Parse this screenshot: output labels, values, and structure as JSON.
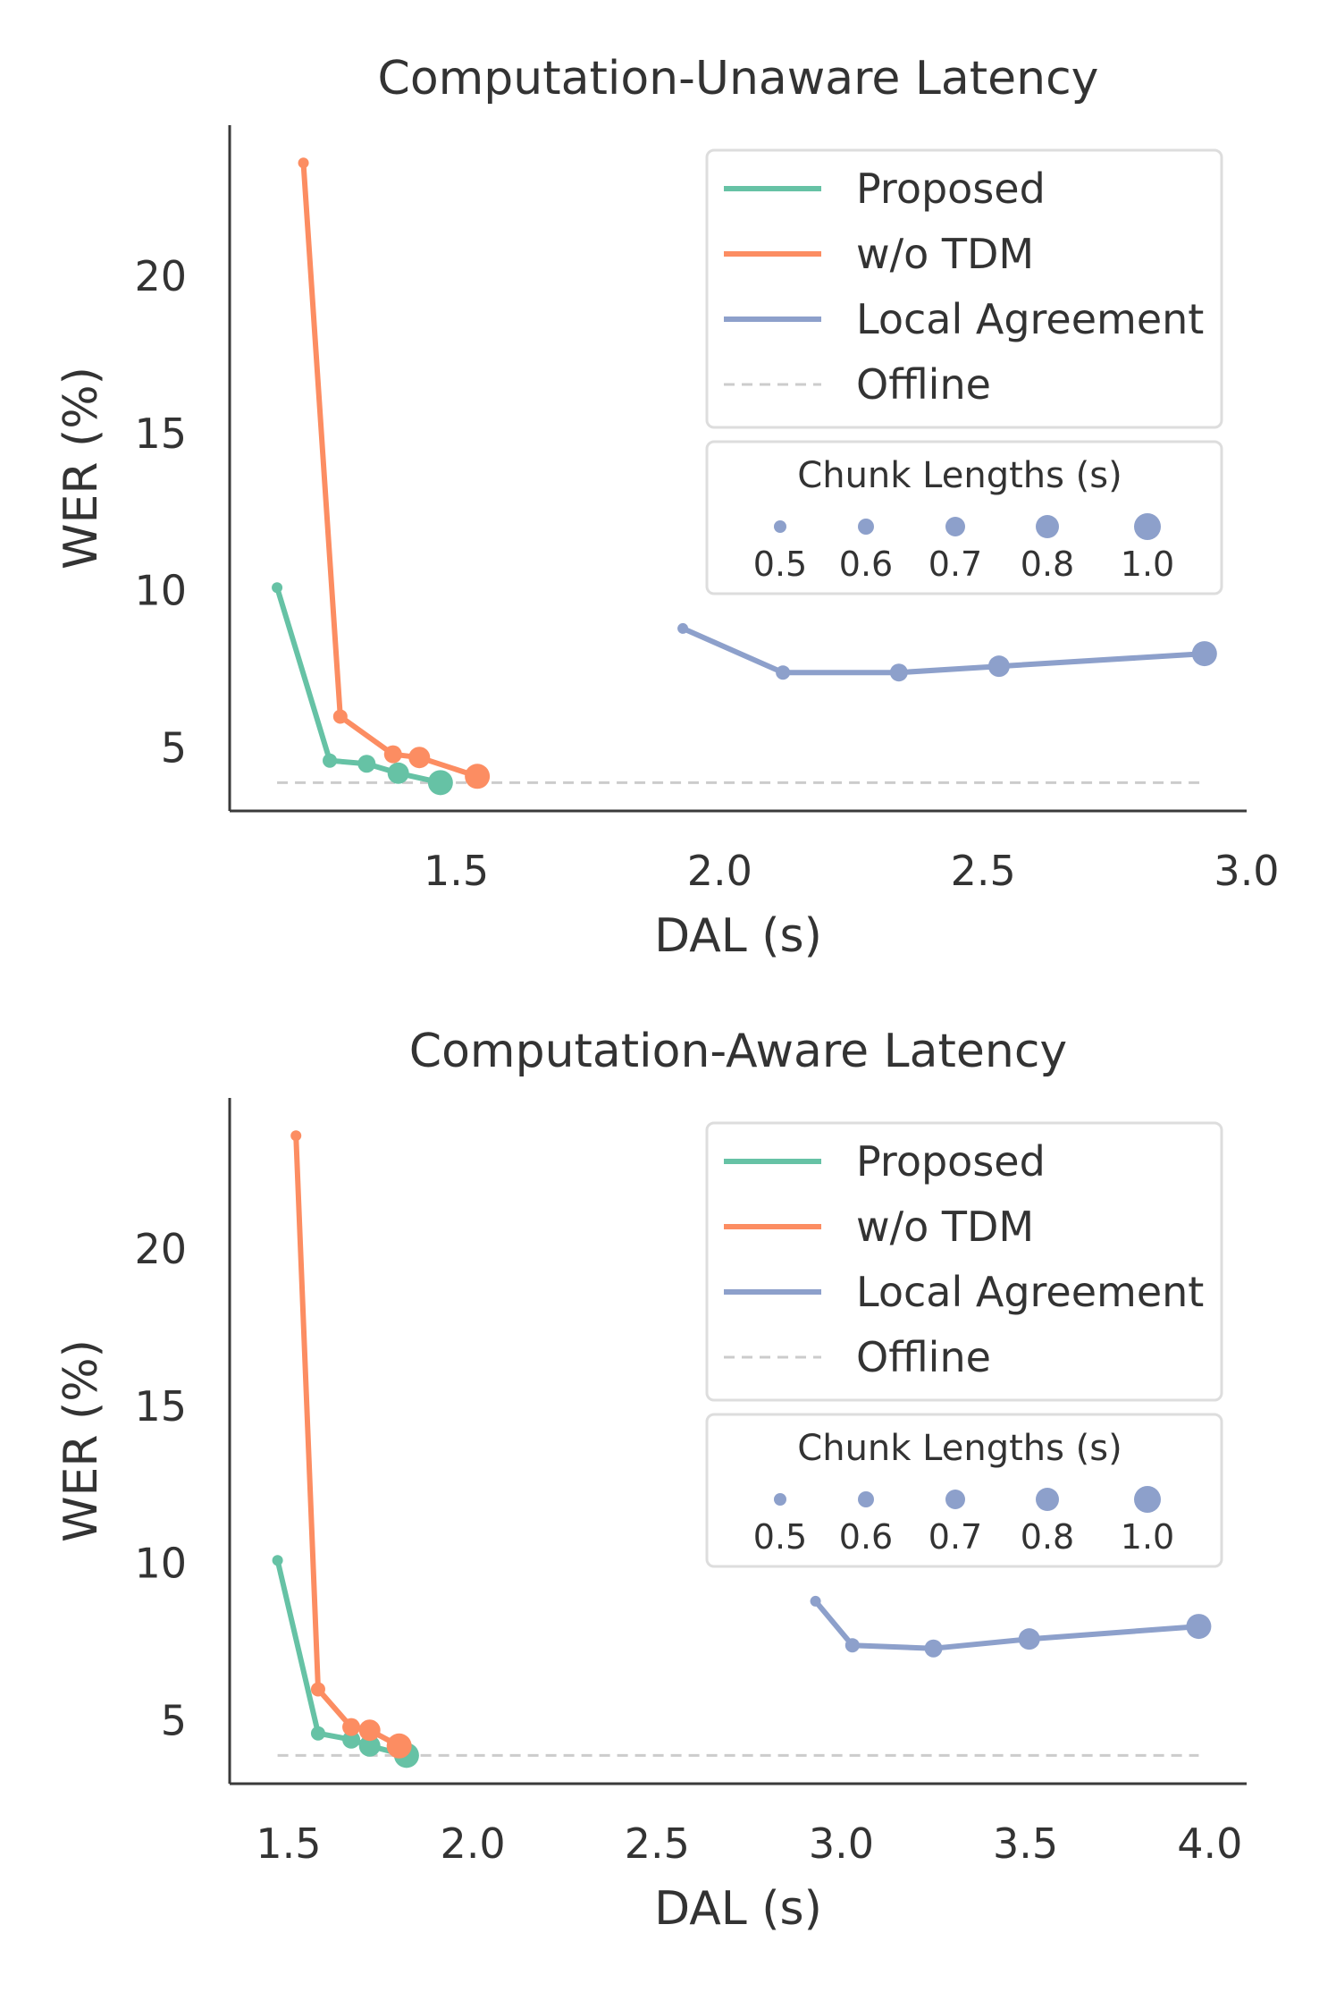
{
  "colors": {
    "proposed": "#66c2a5",
    "wo_tdm": "#fc8d62",
    "local_agreement": "#8da0cb",
    "offline": "#cccccc",
    "axis": "#3a3a3a",
    "legend_border": "#dddddd"
  },
  "chunk_legend": {
    "title": "Chunk Lengths (s)",
    "labels": [
      "0.5",
      "0.6",
      "0.7",
      "0.8",
      "1.0"
    ]
  },
  "chart_data": [
    {
      "type": "line",
      "title": "Computation-Unaware Latency",
      "xlabel": "DAL (s)",
      "ylabel": "WER (%)",
      "xlim": [
        1.07,
        3.0
      ],
      "ylim": [
        3.0,
        24.8
      ],
      "xticks": [
        "1.5",
        "2.0",
        "2.5",
        "3.0"
      ],
      "xtick_values": [
        1.5,
        2.0,
        2.5,
        3.0
      ],
      "yticks": [
        "5",
        "10",
        "15",
        "20"
      ],
      "ytick_values": [
        5,
        10,
        15,
        20
      ],
      "grid": false,
      "legend_position": "top-right",
      "chunk_lengths": [
        0.5,
        0.6,
        0.7,
        0.8,
        1.0
      ],
      "offline": {
        "name": "Offline",
        "y": 3.9,
        "x_range": [
          1.16,
          2.92
        ]
      },
      "series": [
        {
          "name": "Proposed",
          "color_key": "proposed",
          "x": [
            1.16,
            1.26,
            1.33,
            1.39,
            1.47
          ],
          "y": [
            10.1,
            4.6,
            4.5,
            4.2,
            3.9
          ]
        },
        {
          "name": "w/o TDM",
          "color_key": "wo_tdm",
          "x": [
            1.21,
            1.28,
            1.38,
            1.43,
            1.54
          ],
          "y": [
            23.6,
            6.0,
            4.8,
            4.7,
            4.1
          ]
        },
        {
          "name": "Local Agreement",
          "color_key": "local_agreement",
          "x": [
            1.93,
            2.12,
            2.34,
            2.53,
            2.92
          ],
          "y": [
            8.8,
            7.4,
            7.4,
            7.6,
            8.0
          ]
        }
      ],
      "legend_labels": [
        "Proposed",
        "w/o TDM",
        "Local Agreement",
        "Offline"
      ]
    },
    {
      "type": "line",
      "title": "Computation-Aware Latency",
      "xlabel": "DAL (s)",
      "ylabel": "WER (%)",
      "xlim": [
        1.34,
        4.1
      ],
      "ylim": [
        3.0,
        24.8
      ],
      "xticks": [
        "1.5",
        "2.0",
        "2.5",
        "3.0",
        "3.5",
        "4.0"
      ],
      "xtick_values": [
        1.5,
        2.0,
        2.5,
        3.0,
        3.5,
        4.0
      ],
      "yticks": [
        "5",
        "10",
        "15",
        "20"
      ],
      "ytick_values": [
        5,
        10,
        15,
        20
      ],
      "grid": false,
      "legend_position": "top-right",
      "chunk_lengths": [
        0.5,
        0.6,
        0.7,
        0.8,
        1.0
      ],
      "offline": {
        "name": "Offline",
        "y": 3.9,
        "x_range": [
          1.47,
          3.97
        ]
      },
      "series": [
        {
          "name": "Proposed",
          "color_key": "proposed",
          "x": [
            1.47,
            1.58,
            1.67,
            1.72,
            1.82
          ],
          "y": [
            10.1,
            4.6,
            4.4,
            4.2,
            3.9
          ]
        },
        {
          "name": "w/o TDM",
          "color_key": "wo_tdm",
          "x": [
            1.52,
            1.58,
            1.67,
            1.72,
            1.8
          ],
          "y": [
            23.6,
            6.0,
            4.8,
            4.7,
            4.2
          ]
        },
        {
          "name": "Local Agreement",
          "color_key": "local_agreement",
          "x": [
            2.93,
            3.03,
            3.25,
            3.51,
            3.97
          ],
          "y": [
            8.8,
            7.4,
            7.3,
            7.6,
            8.0
          ]
        }
      ],
      "legend_labels": [
        "Proposed",
        "w/o TDM",
        "Local Agreement",
        "Offline"
      ]
    }
  ]
}
